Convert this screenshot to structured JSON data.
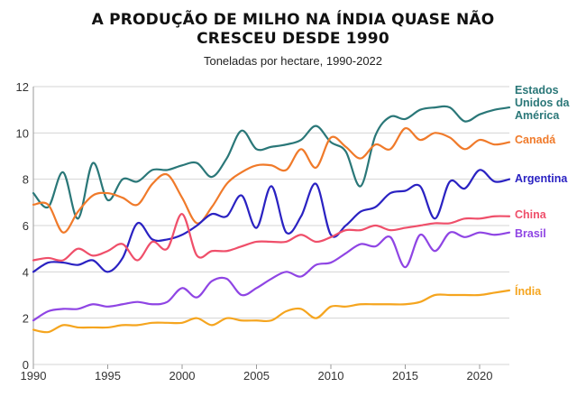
{
  "header": {
    "title_line1": "A PRODUÇÃO DE MILHO NA ÍNDIA QUASE NÃO",
    "title_line2": "CRESCEU DESDE 1990",
    "subtitle": "Toneladas por hectare, 1990-2022"
  },
  "chart_data": {
    "type": "line",
    "title": "A PRODUÇÃO DE MILHO NA ÍNDIA QUASE NÃO CRESCEU DESDE 1990",
    "subtitle": "Toneladas por hectare, 1990-2022",
    "xlabel": "",
    "ylabel": "",
    "xlim": [
      1990,
      2022
    ],
    "ylim": [
      0,
      12
    ],
    "x_ticks": [
      1990,
      1995,
      2000,
      2005,
      2010,
      2015,
      2020
    ],
    "y_ticks": [
      0,
      2,
      4,
      6,
      8,
      10,
      12
    ],
    "grid": "horizontal",
    "legend": "direct labels at right end of lines",
    "x": [
      1990,
      1991,
      1992,
      1993,
      1994,
      1995,
      1996,
      1997,
      1998,
      1999,
      2000,
      2001,
      2002,
      2003,
      2004,
      2005,
      2006,
      2007,
      2008,
      2009,
      2010,
      2011,
      2012,
      2013,
      2014,
      2015,
      2016,
      2017,
      2018,
      2019,
      2020,
      2021,
      2022
    ],
    "series": [
      {
        "name": "Estados Unidos da América",
        "label_lines": [
          "Estados",
          "Unidos da",
          "América"
        ],
        "color": "#2a7778",
        "values": [
          7.4,
          6.8,
          8.3,
          6.3,
          8.7,
          7.1,
          8.0,
          7.9,
          8.4,
          8.4,
          8.6,
          8.7,
          8.1,
          8.9,
          10.1,
          9.3,
          9.4,
          9.5,
          9.7,
          10.3,
          9.6,
          9.2,
          7.7,
          9.9,
          10.7,
          10.6,
          11.0,
          11.1,
          11.1,
          10.5,
          10.8,
          11.0,
          11.1
        ]
      },
      {
        "name": "Canadá",
        "color": "#f07a2a",
        "values": [
          6.9,
          6.9,
          5.7,
          6.6,
          7.3,
          7.4,
          7.2,
          6.9,
          7.8,
          8.2,
          7.2,
          6.1,
          6.8,
          7.8,
          8.3,
          8.6,
          8.6,
          8.4,
          9.3,
          8.5,
          9.8,
          9.4,
          8.9,
          9.5,
          9.3,
          10.2,
          9.7,
          10.0,
          9.8,
          9.3,
          9.7,
          9.5,
          9.6
        ]
      },
      {
        "name": "Argentina",
        "color": "#2a22c2",
        "values": [
          4.0,
          4.4,
          4.4,
          4.3,
          4.5,
          4.0,
          4.6,
          6.1,
          5.4,
          5.4,
          5.6,
          6.0,
          6.5,
          6.4,
          7.3,
          5.9,
          7.7,
          5.7,
          6.4,
          7.8,
          5.6,
          6.0,
          6.6,
          6.8,
          7.4,
          7.5,
          7.7,
          6.3,
          7.9,
          7.6,
          8.4,
          7.9,
          8.0
        ]
      },
      {
        "name": "China",
        "color": "#ef4f6a",
        "values": [
          4.5,
          4.6,
          4.5,
          5.0,
          4.7,
          4.9,
          5.2,
          4.5,
          5.3,
          5.0,
          6.5,
          4.7,
          4.9,
          4.9,
          5.1,
          5.3,
          5.3,
          5.3,
          5.6,
          5.3,
          5.5,
          5.8,
          5.8,
          6.0,
          5.8,
          5.9,
          6.0,
          6.1,
          6.1,
          6.3,
          6.3,
          6.4,
          6.4
        ]
      },
      {
        "name": "Brasil",
        "color": "#8f45e4",
        "values": [
          1.9,
          2.3,
          2.4,
          2.4,
          2.6,
          2.5,
          2.6,
          2.7,
          2.6,
          2.7,
          3.3,
          2.9,
          3.6,
          3.7,
          3.0,
          3.3,
          3.7,
          4.0,
          3.8,
          4.3,
          4.4,
          4.8,
          5.2,
          5.1,
          5.5,
          4.2,
          5.6,
          4.9,
          5.7,
          5.5,
          5.7,
          5.6,
          5.7
        ]
      },
      {
        "name": "Índia",
        "color": "#f5a51f",
        "values": [
          1.5,
          1.4,
          1.7,
          1.6,
          1.6,
          1.6,
          1.7,
          1.7,
          1.8,
          1.8,
          1.8,
          2.0,
          1.7,
          2.0,
          1.9,
          1.9,
          1.9,
          2.3,
          2.4,
          2.0,
          2.5,
          2.5,
          2.6,
          2.6,
          2.6,
          2.6,
          2.7,
          3.0,
          3.0,
          3.0,
          3.0,
          3.1,
          3.2
        ]
      }
    ]
  }
}
